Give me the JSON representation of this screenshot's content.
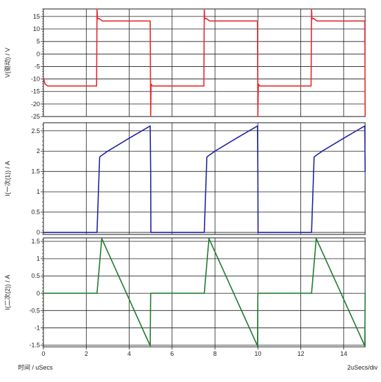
{
  "chart_data": [
    {
      "type": "line",
      "ylabel": "V(驱动) / V",
      "ylim": [
        -25,
        18
      ],
      "yticks": [
        15,
        10,
        5,
        0,
        -5,
        -10,
        -15,
        -20,
        -25
      ],
      "xlim": [
        0,
        15
      ],
      "grid": true,
      "series": [
        {
          "color": "#e8262b",
          "x": [
            0,
            0.08,
            0.2,
            2.48,
            2.5,
            2.52,
            2.6,
            2.7,
            2.75,
            4.98,
            5.0,
            5.02,
            5.08,
            5.2,
            7.48,
            7.5,
            7.52,
            7.6,
            7.7,
            7.75,
            9.98,
            10.0,
            10.02,
            10.08,
            10.2,
            12.48,
            12.5,
            12.52,
            12.6,
            12.7,
            12.75,
            14.98,
            15.0
          ],
          "y": [
            -9.5,
            -12,
            -12.8,
            -12.8,
            19,
            14,
            14.2,
            13.5,
            13.2,
            13.2,
            -25,
            -12,
            -12.8,
            -12.8,
            -12.8,
            19,
            14,
            14.2,
            13.5,
            13.2,
            13.2,
            -25,
            -12,
            -12.8,
            -12.8,
            -12.8,
            19,
            14,
            14.2,
            13.5,
            13.2,
            13.2,
            -25
          ]
        }
      ]
    },
    {
      "type": "line",
      "ylabel": "I(一次(1)) / A",
      "ylim": [
        -0.05,
        2.7
      ],
      "yticks": [
        2.5,
        2,
        1.5,
        1,
        0.5,
        0
      ],
      "xlim": [
        0,
        15
      ],
      "grid": true,
      "series": [
        {
          "color": "#1f1fa3",
          "x": [
            0,
            2.5,
            2.62,
            2.65,
            3.0,
            4.0,
            4.98,
            5.0,
            5.01,
            7.5,
            7.62,
            7.65,
            8.0,
            9.0,
            9.98,
            10.0,
            10.01,
            12.5,
            12.62,
            12.65,
            13.0,
            14.0,
            14.98,
            15.0
          ],
          "y": [
            0,
            0,
            1.85,
            1.87,
            2.0,
            2.32,
            2.62,
            1.5,
            0,
            0,
            1.85,
            1.87,
            2.0,
            2.32,
            2.62,
            1.5,
            0,
            0,
            1.85,
            1.87,
            2.0,
            2.32,
            2.62,
            1.5
          ]
        }
      ]
    },
    {
      "type": "line",
      "ylabel": "I(二次(2)) / A",
      "ylim": [
        -1.55,
        1.6
      ],
      "yticks": [
        1.5,
        1,
        0.5,
        0,
        -0.5,
        -1,
        -1.5
      ],
      "xticks": [
        0,
        2,
        4,
        6,
        8,
        10,
        12,
        14
      ],
      "xlim": [
        0,
        15
      ],
      "grid": true,
      "series": [
        {
          "color": "#1e7a2e",
          "x": [
            0,
            2.5,
            2.72,
            4.98,
            5.0,
            7.5,
            7.72,
            9.98,
            10.0,
            12.5,
            12.72,
            14.98,
            15.0
          ],
          "y": [
            0,
            0,
            1.58,
            -1.52,
            0,
            0,
            1.58,
            -1.52,
            0,
            0,
            1.58,
            -1.52,
            0
          ]
        }
      ]
    }
  ],
  "footer": {
    "xlabel": "时间 / uSecs",
    "scale": "2uSecs/div"
  },
  "colors": {
    "grid": "#1a1a1a",
    "frame": "#1a1a1a"
  }
}
